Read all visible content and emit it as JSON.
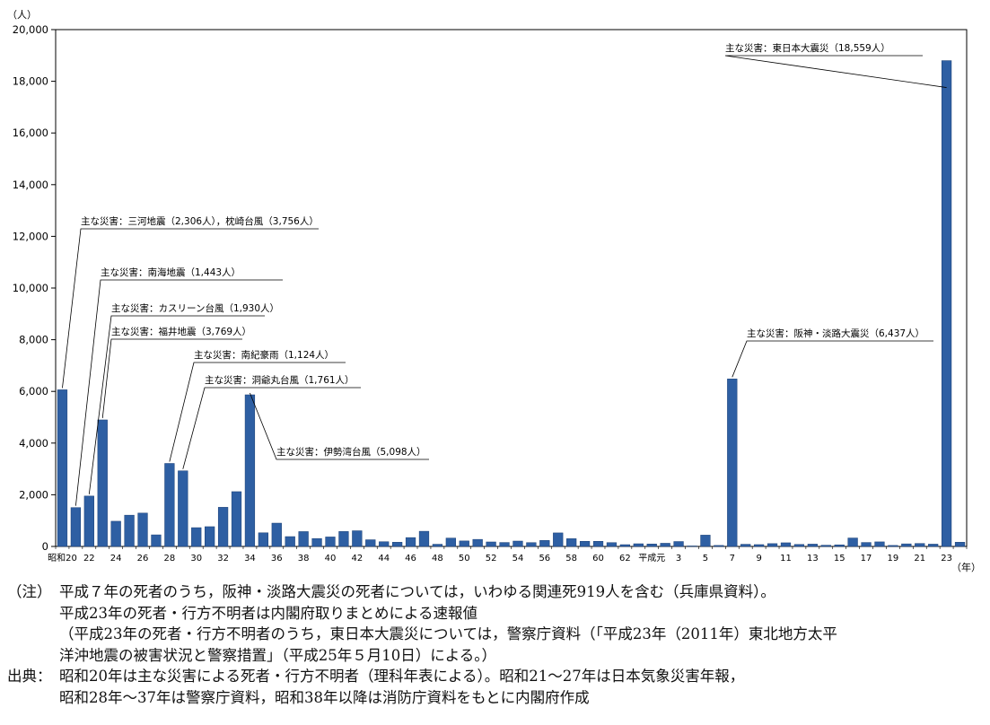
{
  "chart_data": {
    "type": "bar",
    "title": "",
    "ylabel": "（人）",
    "xlabel": "（年）",
    "ylim": [
      0,
      20000
    ],
    "yticks": [
      0,
      2000,
      4000,
      6000,
      8000,
      10000,
      12000,
      14000,
      16000,
      18000,
      20000
    ],
    "ytick_labels": [
      "0",
      "2,000",
      "4,000",
      "6,000",
      "8,000",
      "10,000",
      "12,000",
      "14,000",
      "16,000",
      "18,000",
      "20,000"
    ],
    "bar_color": "#2e5fa3",
    "grid": false,
    "categories": [
      "昭和20",
      "21",
      "22",
      "23",
      "24",
      "25",
      "26",
      "27",
      "28",
      "29",
      "30",
      "31",
      "32",
      "33",
      "34",
      "35",
      "36",
      "37",
      "38",
      "39",
      "40",
      "41",
      "42",
      "43",
      "44",
      "45",
      "46",
      "47",
      "48",
      "49",
      "50",
      "51",
      "52",
      "53",
      "54",
      "55",
      "56",
      "57",
      "58",
      "59",
      "60",
      "61",
      "62",
      "63",
      "平成元",
      "2",
      "3",
      "4",
      "5",
      "6",
      "7",
      "8",
      "9",
      "10",
      "11",
      "12",
      "13",
      "14",
      "15",
      "16",
      "17",
      "18",
      "19",
      "20",
      "21",
      "22",
      "23",
      "24"
    ],
    "values": [
      6062,
      1504,
      1950,
      4897,
      975,
      1210,
      1291,
      449,
      3212,
      2926,
      727,
      765,
      1515,
      2120,
      5868,
      528,
      902,
      381,
      575,
      307,
      367,
      578,
      607,
      259,
      183,
      163,
      343,
      587,
      85,
      324,
      213,
      273,
      174,
      153,
      208,
      148,
      232,
      524,
      301,
      199,
      199,
      148,
      69,
      104,
      96,
      123,
      190,
      19,
      438,
      39,
      6482,
      84,
      71,
      109,
      141,
      78,
      90,
      48,
      62,
      327,
      153,
      177,
      39,
      100,
      115,
      89,
      18800,
      163
    ],
    "x_tick_labels": [
      {
        "index": 0,
        "label": "昭和20"
      },
      {
        "index": 2,
        "label": "22"
      },
      {
        "index": 4,
        "label": "24"
      },
      {
        "index": 6,
        "label": "26"
      },
      {
        "index": 8,
        "label": "28"
      },
      {
        "index": 10,
        "label": "30"
      },
      {
        "index": 12,
        "label": "32"
      },
      {
        "index": 14,
        "label": "34"
      },
      {
        "index": 16,
        "label": "36"
      },
      {
        "index": 18,
        "label": "38"
      },
      {
        "index": 20,
        "label": "40"
      },
      {
        "index": 22,
        "label": "42"
      },
      {
        "index": 24,
        "label": "44"
      },
      {
        "index": 26,
        "label": "46"
      },
      {
        "index": 28,
        "label": "48"
      },
      {
        "index": 30,
        "label": "50"
      },
      {
        "index": 32,
        "label": "52"
      },
      {
        "index": 34,
        "label": "54"
      },
      {
        "index": 36,
        "label": "56"
      },
      {
        "index": 38,
        "label": "58"
      },
      {
        "index": 40,
        "label": "60"
      },
      {
        "index": 42,
        "label": "62"
      },
      {
        "index": 44,
        "label": "平成元"
      },
      {
        "index": 46,
        "label": "3"
      },
      {
        "index": 48,
        "label": "5"
      },
      {
        "index": 50,
        "label": "7"
      },
      {
        "index": 52,
        "label": "9"
      },
      {
        "index": 54,
        "label": "11"
      },
      {
        "index": 56,
        "label": "13"
      },
      {
        "index": 58,
        "label": "15"
      },
      {
        "index": 60,
        "label": "17"
      },
      {
        "index": 62,
        "label": "19"
      },
      {
        "index": 64,
        "label": "21"
      },
      {
        "index": 66,
        "label": "23"
      }
    ],
    "annotations": [
      {
        "target_index": 0,
        "text": "主な災害：三河地震（2,306人），枕崎台風（3,756人）"
      },
      {
        "target_index": 1,
        "text": "主な災害：南海地震（1,443人）"
      },
      {
        "target_index": 2,
        "text": "主な災害：カスリーン台風（1,930人）"
      },
      {
        "target_index": 3,
        "text": "主な災害：福井地震（3,769人）"
      },
      {
        "target_index": 8,
        "text": "主な災害：南紀豪雨（1,124人）"
      },
      {
        "target_index": 9,
        "text": "主な災害：洞爺丸台風（1,761人）"
      },
      {
        "target_index": 14,
        "text": "主な災害：伊勢湾台風（5,098人）"
      },
      {
        "target_index": 50,
        "text": "主な災害：阪神・淡路大震災（6,437人）"
      },
      {
        "target_index": 66,
        "text": "主な災害：東日本大震災（18,559人）"
      }
    ]
  },
  "notes": {
    "note_label": "（注）",
    "note_lines": [
      "平成７年の死者のうち，阪神・淡路大震災の死者については，いわゆる関連死919人を含む（兵庫県資料）。",
      "平成23年の死者・行方不明者は内閣府取りまとめによる速報値",
      "（平成23年の死者・行方不明者のうち，東日本大震災については，警察庁資料（「平成23年（2011年）東北地方太平",
      "洋沖地震の被害状況と警察措置」（平成25年５月10日）による。）"
    ],
    "source_label": "出典：",
    "source_lines": [
      "昭和20年は主な災害による死者・行方不明者（理科年表による）。昭和21～27年は日本気象災害年報，",
      "昭和28年～37年は警察庁資料，昭和38年以降は消防庁資料をもとに内閣府作成"
    ]
  }
}
